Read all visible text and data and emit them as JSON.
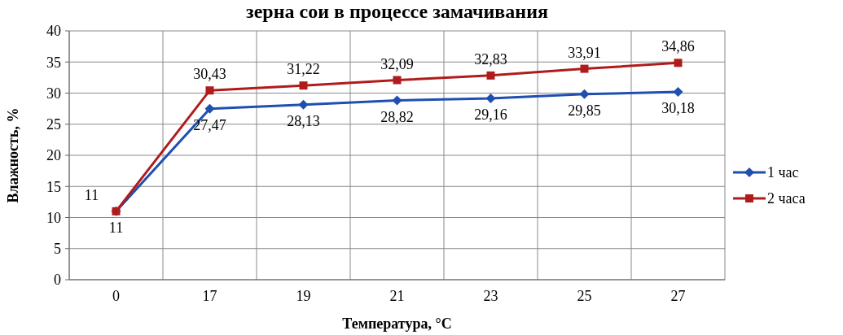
{
  "chart_data": {
    "type": "line",
    "title": "зерна сои в процессе замачивания",
    "xlabel": "Температура, °C",
    "ylabel": "Влажность, %",
    "categories": [
      "0",
      "17",
      "19",
      "21",
      "23",
      "25",
      "27"
    ],
    "series": [
      {
        "name": "1 час",
        "color": "#1f4fb0",
        "marker": "diamond",
        "values": [
          11,
          27.47,
          28.13,
          28.82,
          29.16,
          29.85,
          30.18
        ],
        "value_labels": [
          "11",
          "27,47",
          "28,13",
          "28,82",
          "29,16",
          "29,85",
          "30,18"
        ]
      },
      {
        "name": "2 часа",
        "color": "#b01c1c",
        "marker": "square",
        "values": [
          11,
          30.43,
          31.22,
          32.09,
          32.83,
          33.91,
          34.86
        ],
        "value_labels": [
          "11",
          "30,43",
          "31,22",
          "32,09",
          "32,83",
          "33,91",
          "34,86"
        ]
      }
    ],
    "ylim": [
      0,
      40
    ],
    "yticks": [
      0,
      5,
      10,
      15,
      20,
      25,
      30,
      35,
      40
    ],
    "grid": true,
    "legend": "right"
  }
}
